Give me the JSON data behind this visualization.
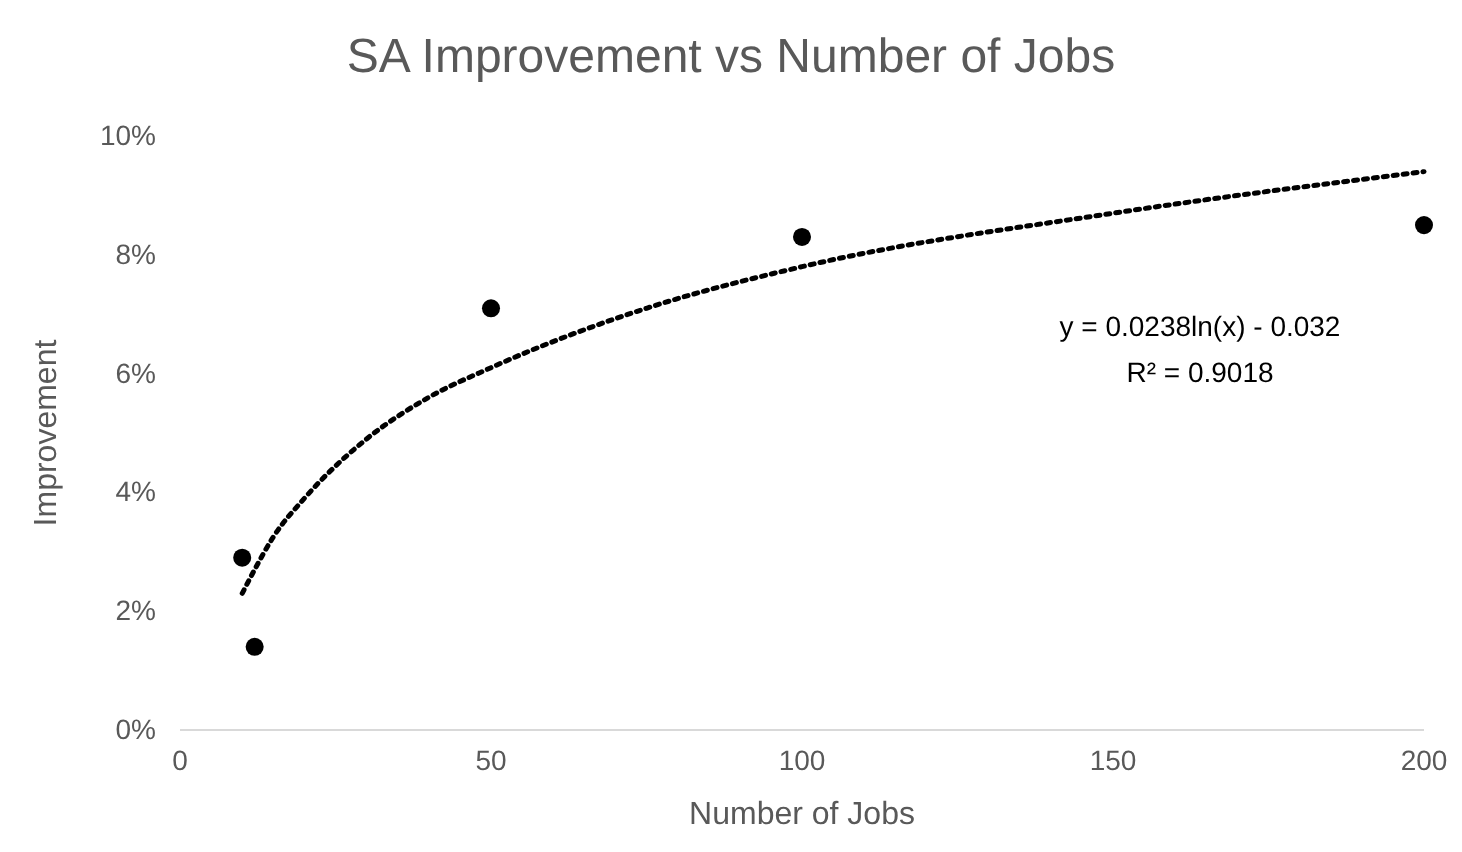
{
  "chart_data": {
    "type": "scatter",
    "title": "SA Improvement vs Number of Jobs",
    "xlabel": "Number of Jobs",
    "ylabel": "Improvement",
    "xlim": [
      0,
      200
    ],
    "xticks": [
      0,
      50,
      100,
      150,
      200
    ],
    "ylim": [
      0,
      10
    ],
    "yticks": [
      {
        "value": 0,
        "label": "0%"
      },
      {
        "value": 2,
        "label": "2%"
      },
      {
        "value": 4,
        "label": "4%"
      },
      {
        "value": 6,
        "label": "6%"
      },
      {
        "value": 8,
        "label": "8%"
      },
      {
        "value": 10,
        "label": "10%"
      }
    ],
    "grid": false,
    "series": [
      {
        "type": "scatter",
        "color": "#000000",
        "marker": "circle",
        "x": [
          10,
          12,
          50,
          100,
          200
        ],
        "values": [
          2.9,
          1.4,
          7.1,
          8.3,
          8.5
        ]
      },
      {
        "type": "line",
        "color": "#000000",
        "line_style": "dotted",
        "marker": "none",
        "x": [
          10,
          12,
          15,
          20,
          30,
          40,
          50,
          75,
          100,
          150,
          200
        ],
        "values": [
          2.3,
          2.7,
          3.25,
          3.9,
          4.9,
          5.6,
          6.1,
          7.1,
          7.8,
          8.7,
          9.4
        ]
      }
    ],
    "annotations": [
      "y = 0.0238ln(x) - 0.032",
      "R² = 0.9018"
    ]
  }
}
